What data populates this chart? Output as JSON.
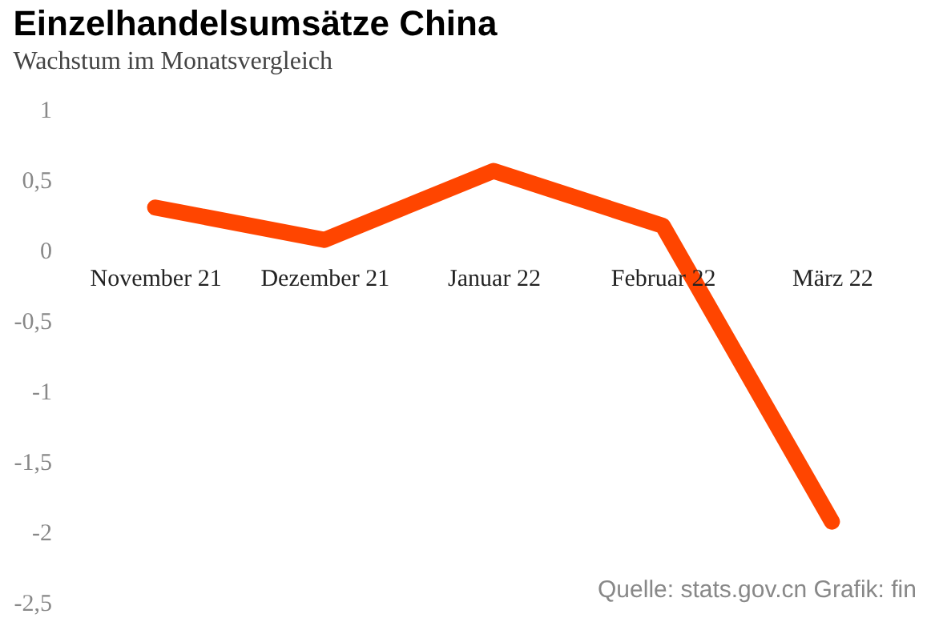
{
  "chart_data": {
    "type": "line",
    "title": "Einzelhandelsumsätze China",
    "subtitle": "Wachstum im Monatsvergleich",
    "categories": [
      "November 21",
      "Dezember 21",
      "Januar 22",
      "Februar 22",
      "März 22"
    ],
    "series": [
      {
        "color": "#ff4500",
        "values": [
          0.3,
          0.07,
          0.56,
          0.17,
          -1.93
        ]
      }
    ],
    "ylim": [
      -2.5,
      1
    ],
    "yticks": [
      1,
      {
        "value": 0.5,
        "label": "0,5"
      },
      0,
      {
        "value": -0.5,
        "label": "-0,5"
      },
      -1,
      {
        "value": -1.5,
        "label": "-1,5"
      },
      -2,
      {
        "value": -2.5,
        "label": "-2,5"
      }
    ],
    "grid": false,
    "marker": "none",
    "line_style": "solid",
    "annotations": [
      "Quelle: stats.gov.cn  Grafik: fin"
    ]
  }
}
